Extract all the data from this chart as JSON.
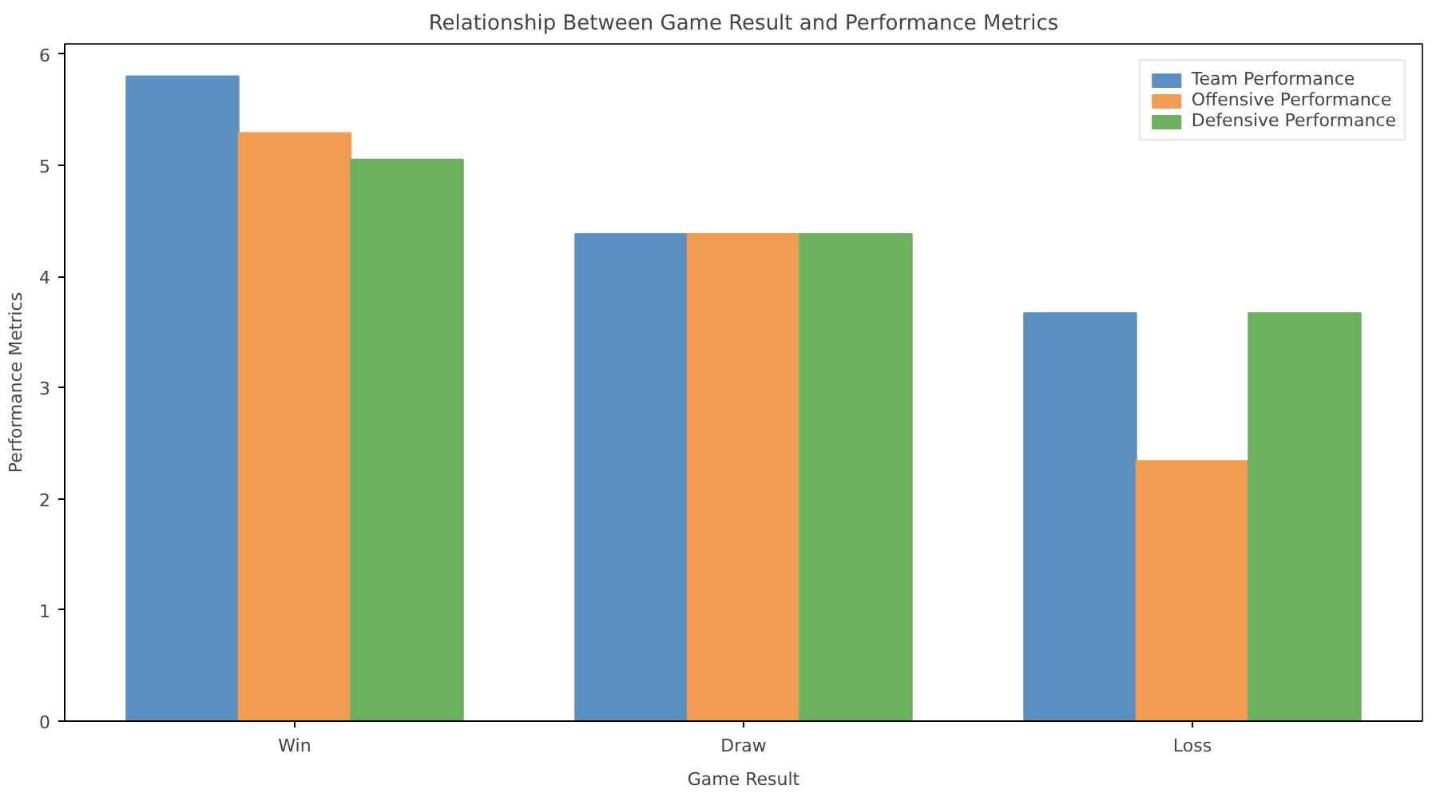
{
  "chart_data": {
    "type": "bar",
    "title": "Relationship Between Game Result and Performance Metrics",
    "xlabel": "Game Result",
    "ylabel": "Performance Metrics",
    "categories": [
      "Win",
      "Draw",
      "Loss"
    ],
    "series": [
      {
        "name": "Team Performance",
        "color": "#5b8fbf",
        "values": [
          5.8,
          4.38,
          3.67
        ]
      },
      {
        "name": "Offensive Performance",
        "color": "#f09c52",
        "values": [
          5.29,
          4.38,
          2.34
        ]
      },
      {
        "name": "Defensive Performance",
        "color": "#6db060",
        "values": [
          5.05,
          4.38,
          3.67
        ]
      }
    ],
    "ylim": [
      0,
      6.09
    ],
    "yticks": [
      0,
      1,
      2,
      3,
      4,
      5,
      6
    ],
    "grid": false,
    "legend": "top right"
  }
}
